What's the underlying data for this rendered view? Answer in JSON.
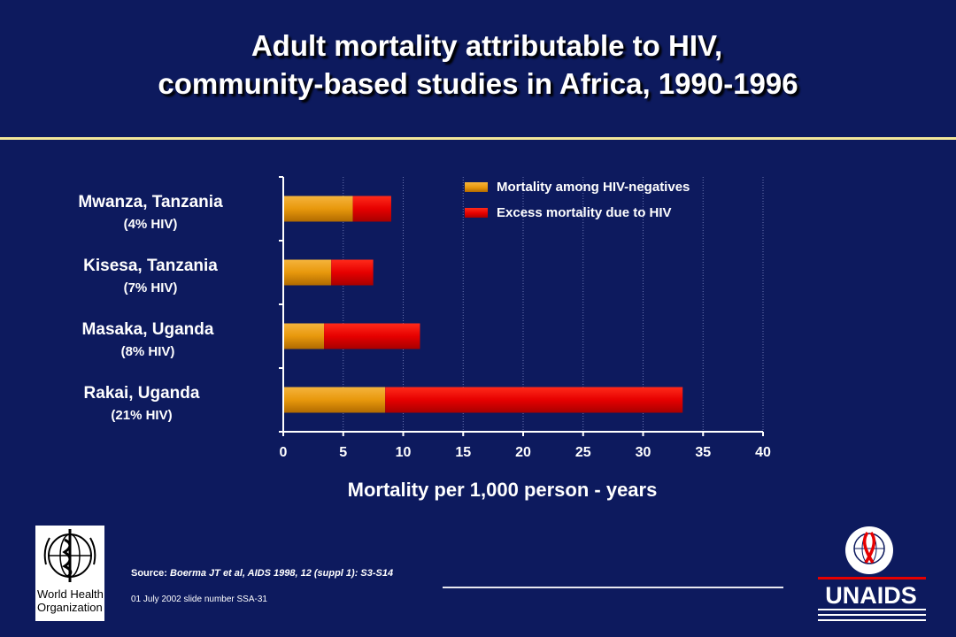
{
  "title_line1": "Adult mortality attributable to HIV,",
  "title_line2": "community-based studies in Africa, 1990-1996",
  "categories": [
    {
      "name": "Mwanza, Tanzania",
      "sub": "(4% HIV)"
    },
    {
      "name": "Kisesa, Tanzania",
      "sub": "(7% HIV)"
    },
    {
      "name": "Masaka, Uganda",
      "sub": "(8% HIV)"
    },
    {
      "name": "Rakai, Uganda",
      "sub": "(21% HIV)"
    }
  ],
  "legend": {
    "item1": "Mortality among HIV-negatives",
    "item2": "Excess mortality due to HIV"
  },
  "source_label": "Source:",
  "source_text": "Boerma JT et al, AIDS 1998, 12 (suppl 1): S3-S14",
  "slide_info": "01 July 2002 slide number SSA-31",
  "who_logo_text": "World Health Organization",
  "unaids_logo_text": "UNAIDS",
  "colors": {
    "background": "#0d1a5e",
    "negatives": "#e8980c",
    "excess": "#e60000",
    "rule": "#f3e79a"
  },
  "chart_data": {
    "type": "bar",
    "orientation": "horizontal",
    "stacked": true,
    "categories": [
      "Mwanza, Tanzania",
      "Kisesa, Tanzania",
      "Masaka, Uganda",
      "Rakai, Uganda"
    ],
    "series": [
      {
        "name": "Mortality among HIV-negatives",
        "values": [
          5.8,
          4.0,
          3.4,
          8.5
        ]
      },
      {
        "name": "Excess mortality due to HIV",
        "values": [
          3.2,
          3.5,
          8.0,
          24.8
        ]
      }
    ],
    "xlabel": "Mortality per 1,000 person - years",
    "xlim": [
      0,
      40
    ],
    "xticks": [
      "0",
      "5",
      "10",
      "15",
      "20",
      "25",
      "30",
      "35",
      "40"
    ],
    "grid": "vertical dotted",
    "legend_position": "top-right"
  }
}
